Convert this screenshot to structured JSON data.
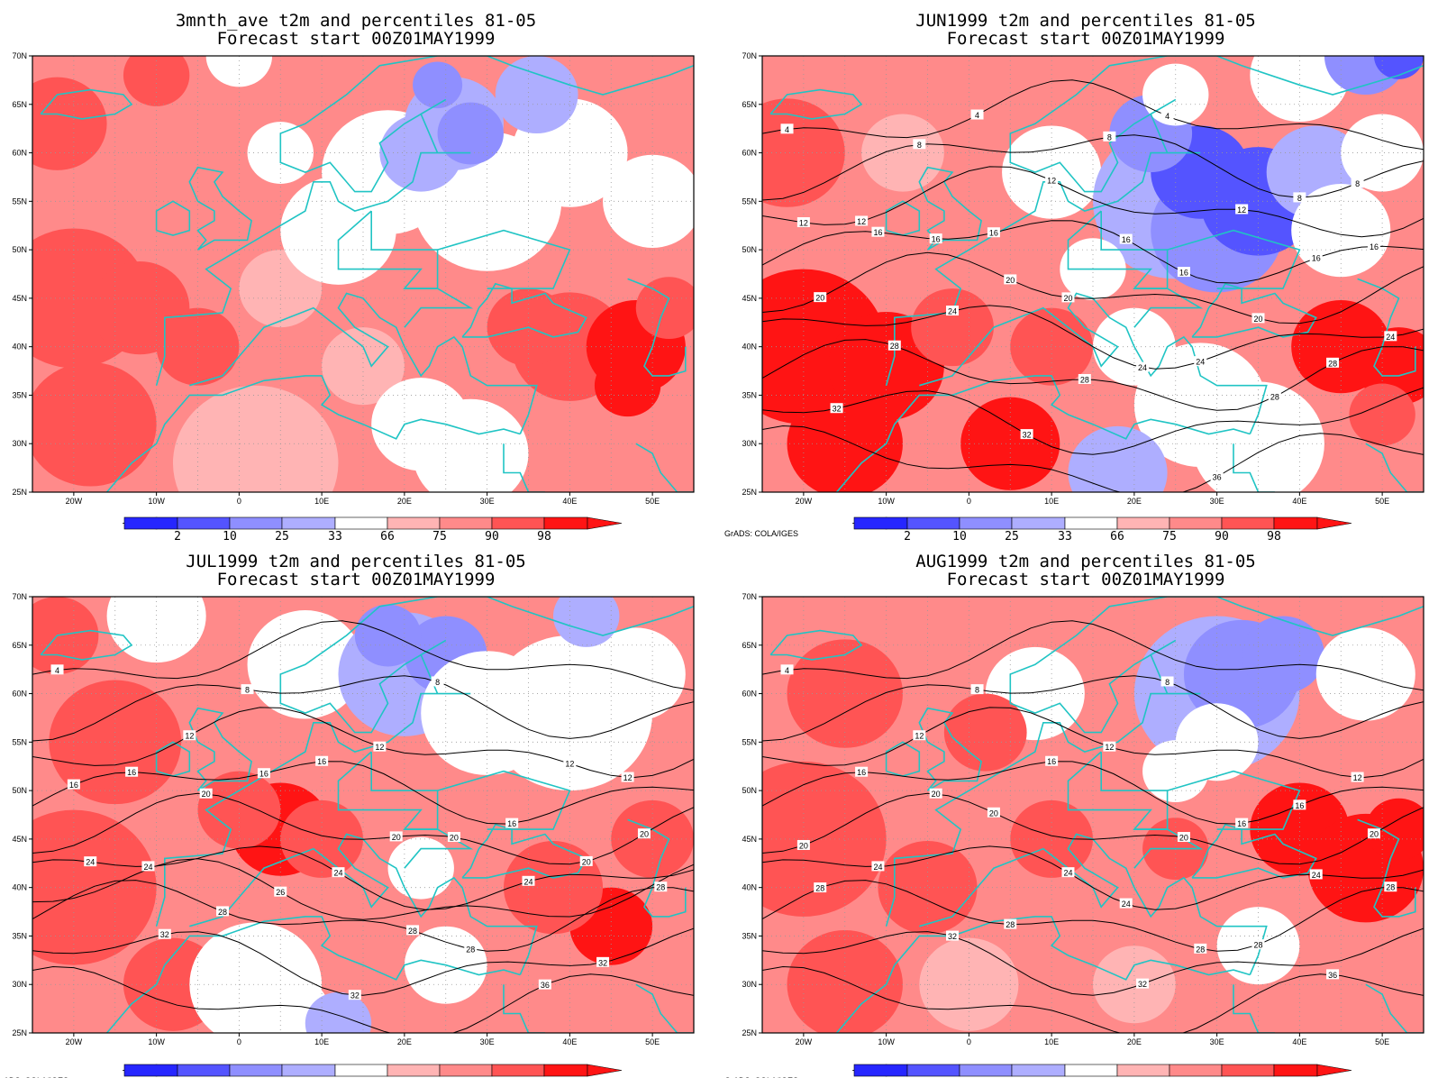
{
  "colors": {
    "blue_2": "#2626ff",
    "blue_10": "#5454ff",
    "blue_25": "#8f8fff",
    "blue_33": "#aeaeff",
    "white": "#ffffff",
    "red_66": "#ffb4b4",
    "red_75": "#ff8a8a",
    "red_90": "#ff5454",
    "red_98": "#ff1414",
    "coast": "#20c4c4",
    "contour": "#000000",
    "grid": "#999999"
  },
  "lat_labels": [
    "70N",
    "65N",
    "60N",
    "55N",
    "50N",
    "45N",
    "40N",
    "35N",
    "30N",
    "25N"
  ],
  "lon_labels": [
    "20W",
    "10W",
    "0",
    "10E",
    "20E",
    "30E",
    "40E",
    "50E"
  ],
  "colorbar_labels": [
    "2",
    "10",
    "25",
    "33",
    "66",
    "75",
    "90",
    "98"
  ],
  "credit": "GrADS: COLA/IGES",
  "panels": [
    {
      "id": "avg",
      "title1": "3mnth_ave t2m and percentiles 81-05",
      "title2": "Forecast start 00Z01MAY1999",
      "show_credit": false,
      "contour_labels": []
    },
    {
      "id": "jun",
      "title1": "JUN1999 t2m and percentiles 81-05",
      "title2": "Forecast start 00Z01MAY1999",
      "show_credit": true,
      "contour_labels": [
        "4",
        "4",
        "4",
        "8",
        "8",
        "8",
        "8",
        "12",
        "12",
        "12",
        "12",
        "16",
        "16",
        "16",
        "16",
        "16",
        "16",
        "16",
        "20",
        "20",
        "20",
        "20",
        "24",
        "24",
        "24",
        "24",
        "28",
        "28",
        "28",
        "28",
        "32",
        "32",
        "36"
      ]
    },
    {
      "id": "jul",
      "title1": "JUL1999 t2m and percentiles 81-05",
      "title2": "Forecast start 00Z01MAY1999",
      "show_credit": true,
      "contour_labels": [
        "4",
        "8",
        "8",
        "12",
        "12",
        "12",
        "12",
        "16",
        "16",
        "16",
        "16",
        "16",
        "20",
        "20",
        "20",
        "20",
        "20",
        "24",
        "24",
        "24",
        "24",
        "26",
        "28",
        "28",
        "28",
        "28",
        "32",
        "32",
        "32",
        "36"
      ]
    },
    {
      "id": "aug",
      "title1": "AUG1999 t2m and percentiles 81-05",
      "title2": "Forecast start 00Z01MAY1999",
      "show_credit": true,
      "contour_labels": [
        "4",
        "8",
        "8",
        "12",
        "12",
        "12",
        "16",
        "16",
        "16",
        "16",
        "20",
        "20",
        "20",
        "20",
        "20",
        "24",
        "24",
        "24",
        "24",
        "28",
        "28",
        "28",
        "28",
        "28",
        "32",
        "32",
        "36"
      ]
    }
  ]
}
